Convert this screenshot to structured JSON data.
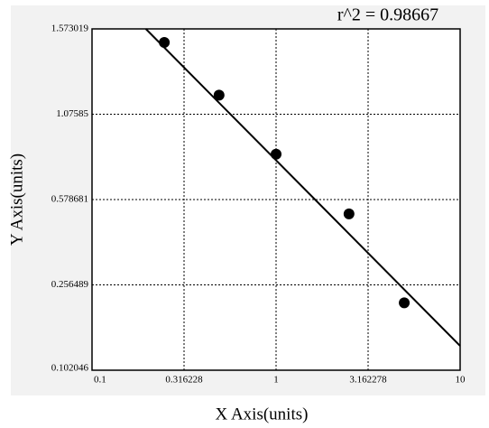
{
  "chart_data": {
    "type": "scatter",
    "annotation": "r^2 = 0.98667",
    "xlabel": "X Axis(units)",
    "ylabel": "Y Axis(units)",
    "xscale": "log",
    "x": [
      0.247,
      0.49,
      1,
      2.49,
      4.97
    ],
    "values": [
      1.494,
      1.187,
      0.843,
      0.5245,
      0.224
    ],
    "color": "#000000",
    "fit_line": {
      "x": [
        0.196,
        10
      ],
      "values": [
        1.573019,
        0.146
      ]
    },
    "xlim": [
      0.1,
      10
    ],
    "xticks": [
      0.1,
      0.316228,
      1,
      3.162278,
      10
    ],
    "ylim": [
      0.102046,
      1.573019
    ],
    "yticks": [
      0.102046,
      0.256489,
      0.578681,
      1.07585,
      1.573019
    ],
    "grid": true
  }
}
